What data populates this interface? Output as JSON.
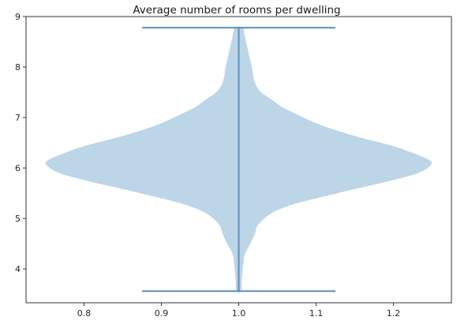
{
  "chart_data": {
    "type": "violin",
    "title": "Average number of rooms per dwelling",
    "xlabel": "",
    "ylabel": "",
    "xlim": [
      0.725,
      1.275
    ],
    "ylim": [
      3.33,
      9.0
    ],
    "x_ticks": [
      0.8,
      0.9,
      1.0,
      1.1,
      1.2
    ],
    "x_tick_labels": [
      "0.8",
      "0.9",
      "1.0",
      "1.1",
      "1.2"
    ],
    "y_ticks": [
      4,
      5,
      6,
      7,
      8,
      9
    ],
    "y_tick_labels": [
      "4",
      "5",
      "6",
      "7",
      "8",
      "9"
    ],
    "grid": false,
    "violin": {
      "position": 1.0,
      "min": 3.56,
      "max": 8.78,
      "max_half_width": 0.25,
      "density_profile": [
        {
          "y": 3.56,
          "half_width": 0.003
        },
        {
          "y": 3.8,
          "half_width": 0.004
        },
        {
          "y": 4.1,
          "half_width": 0.006
        },
        {
          "y": 4.3,
          "half_width": 0.008
        },
        {
          "y": 4.5,
          "half_width": 0.015
        },
        {
          "y": 4.7,
          "half_width": 0.021
        },
        {
          "y": 4.85,
          "half_width": 0.024
        },
        {
          "y": 5.0,
          "half_width": 0.033
        },
        {
          "y": 5.15,
          "half_width": 0.048
        },
        {
          "y": 5.3,
          "half_width": 0.075
        },
        {
          "y": 5.45,
          "half_width": 0.114
        },
        {
          "y": 5.6,
          "half_width": 0.155
        },
        {
          "y": 5.75,
          "half_width": 0.197
        },
        {
          "y": 5.9,
          "half_width": 0.232
        },
        {
          "y": 6.05,
          "half_width": 0.248
        },
        {
          "y": 6.15,
          "half_width": 0.247
        },
        {
          "y": 6.3,
          "half_width": 0.225
        },
        {
          "y": 6.45,
          "half_width": 0.196
        },
        {
          "y": 6.6,
          "half_width": 0.158
        },
        {
          "y": 6.75,
          "half_width": 0.125
        },
        {
          "y": 6.9,
          "half_width": 0.098
        },
        {
          "y": 7.05,
          "half_width": 0.077
        },
        {
          "y": 7.2,
          "half_width": 0.057
        },
        {
          "y": 7.35,
          "half_width": 0.043
        },
        {
          "y": 7.5,
          "half_width": 0.029
        },
        {
          "y": 7.65,
          "half_width": 0.022
        },
        {
          "y": 7.8,
          "half_width": 0.019
        },
        {
          "y": 8.0,
          "half_width": 0.017
        },
        {
          "y": 8.2,
          "half_width": 0.014
        },
        {
          "y": 8.4,
          "half_width": 0.011
        },
        {
          "y": 8.6,
          "half_width": 0.008
        },
        {
          "y": 8.78,
          "half_width": 0.005
        }
      ],
      "cap_half_width": 0.125,
      "fill_color": "#bcd6e8",
      "line_color": "#5b8fbd"
    },
    "axis_color": "#333333"
  }
}
